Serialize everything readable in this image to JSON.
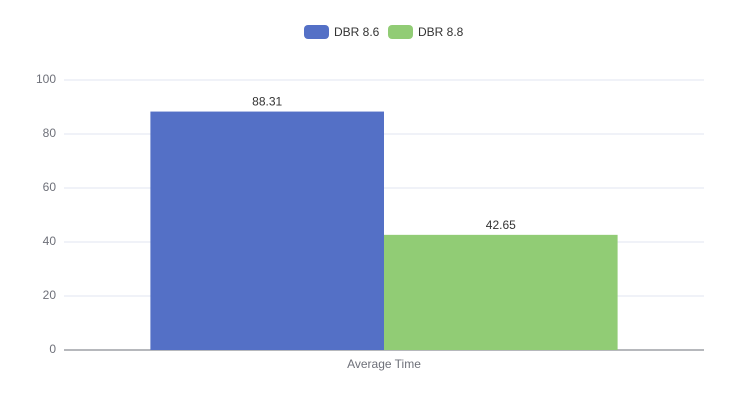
{
  "chart_data": {
    "type": "bar",
    "categories": [
      "Average Time"
    ],
    "series": [
      {
        "name": "DBR 8.6",
        "color": "#5470c6",
        "values": [
          88.31
        ]
      },
      {
        "name": "DBR 8.8",
        "color": "#91cc75",
        "values": [
          42.65
        ]
      }
    ],
    "ylim": [
      0,
      100
    ],
    "yticks": [
      0,
      20,
      40,
      60,
      80,
      100
    ],
    "grid": true
  }
}
